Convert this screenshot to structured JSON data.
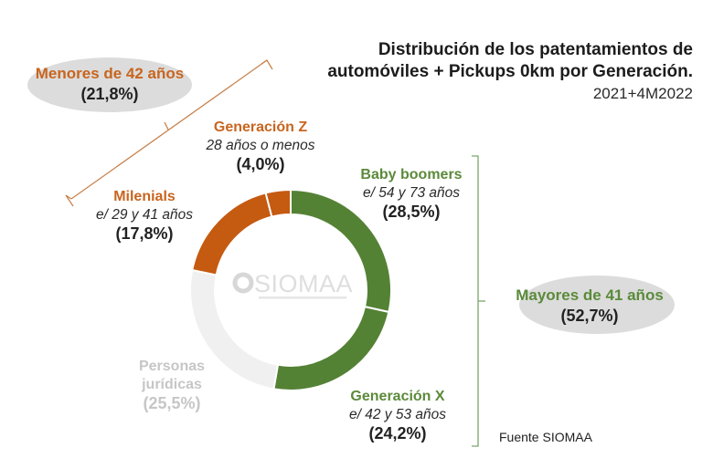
{
  "chart_data": {
    "type": "pie",
    "variant": "donut",
    "title": "Distribución de los patentamientos de automóviles + Pickups 0km por Generación.",
    "title_lines": [
      "Distribución de los patentamientos de",
      "automóviles + Pickups 0km por Generación."
    ],
    "subtitle": "2021+4M2022",
    "start_angle_deg": 0,
    "direction": "clockwise",
    "segments": [
      {
        "name": "Baby boomers",
        "range": "e/ 54 y 73 años",
        "value": 28.5,
        "pct_label": "(28,5%)",
        "color": "#548235"
      },
      {
        "name": "Generación X",
        "range": "e/ 42 y 53 años",
        "value": 24.2,
        "pct_label": "(24,2%)",
        "color": "#548235"
      },
      {
        "name": "Personas jurídicas",
        "name_lines": [
          "Personas",
          "jurídicas"
        ],
        "range": "",
        "value": 25.5,
        "pct_label": "(25,5%)",
        "color": "#f0f0f0"
      },
      {
        "name": "Milenials",
        "range": "e/ 29 y 41 años",
        "value": 17.8,
        "pct_label": "(17,8%)",
        "color": "#c55a11"
      },
      {
        "name": "Generación Z",
        "range": "28 años o menos",
        "value": 4.0,
        "pct_label": "(4,0%)",
        "color": "#c55a11"
      }
    ],
    "groups": [
      {
        "name": "Menores de 42 años",
        "pct_label": "(21,8%)",
        "value": 21.8,
        "color": "#c8651f",
        "members": [
          "Generación Z",
          "Milenials"
        ]
      },
      {
        "name": "Mayores de 41 años",
        "pct_label": "(52,7%)",
        "value": 52.7,
        "color": "#5b8a3a",
        "members": [
          "Baby boomers",
          "Generación X"
        ]
      }
    ],
    "center_logo": "SIOMAA",
    "source": "Fuente SIOMAA"
  },
  "colors": {
    "orange": "#c55a11",
    "green": "#548235",
    "grey": "#f0f0f0",
    "bracket_orange": "#c8834f",
    "bracket_green": "#7aa86a"
  }
}
